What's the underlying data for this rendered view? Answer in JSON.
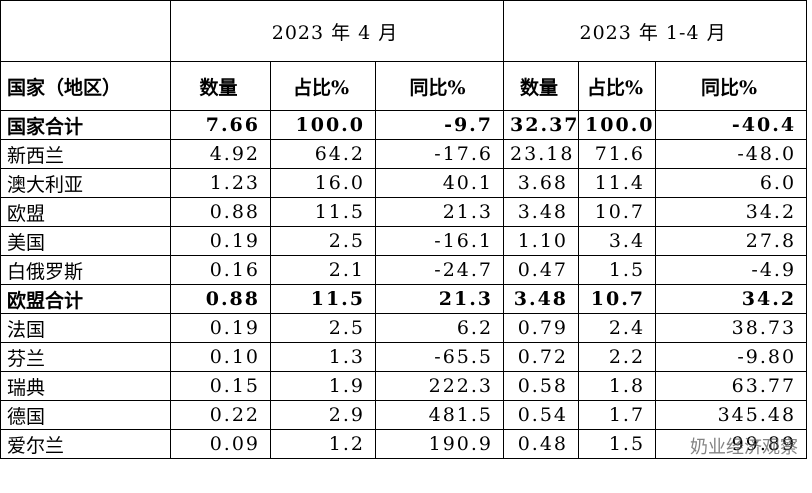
{
  "header": {
    "periods": [
      "2023 年 4 月",
      "2023 年 1-4 月"
    ],
    "columns": [
      "国家（地区）",
      "数量",
      "占比%",
      "同比%",
      "数量",
      "占比%",
      "同比%"
    ]
  },
  "table": {
    "rows": [
      [
        "国家合计",
        "7.66",
        "100.0",
        "-9.7",
        "32.37",
        "100.0",
        "-40.4"
      ],
      [
        "新西兰",
        "4.92",
        "64.2",
        "-17.6",
        "23.18",
        "71.6",
        "-48.0"
      ],
      [
        "澳大利亚",
        "1.23",
        "16.0",
        "40.1",
        "3.68",
        "11.4",
        "6.0"
      ],
      [
        "欧盟",
        "0.88",
        "11.5",
        "21.3",
        "3.48",
        "10.7",
        "34.2"
      ],
      [
        "美国",
        "0.19",
        "2.5",
        "-16.1",
        "1.10",
        "3.4",
        "27.8"
      ],
      [
        "白俄罗斯",
        "0.16",
        "2.1",
        "-24.7",
        "0.47",
        "1.5",
        "-4.9"
      ],
      [
        "欧盟合计",
        "0.88",
        "11.5",
        "21.3",
        "3.48",
        "10.7",
        "34.2"
      ],
      [
        "法国",
        "0.19",
        "2.5",
        "6.2",
        "0.79",
        "2.4",
        "38.73"
      ],
      [
        "芬兰",
        "0.10",
        "1.3",
        "-65.5",
        "0.72",
        "2.2",
        "-9.80"
      ],
      [
        "瑞典",
        "0.15",
        "1.9",
        "222.3",
        "0.58",
        "1.8",
        "63.77"
      ],
      [
        "德国",
        "0.22",
        "2.9",
        "481.5",
        "0.54",
        "1.7",
        "345.48"
      ],
      [
        "爱尔兰",
        "0.09",
        "1.2",
        "190.9",
        "0.48",
        "1.5",
        "99.89"
      ]
    ]
  },
  "watermark": "奶业经济观察"
}
